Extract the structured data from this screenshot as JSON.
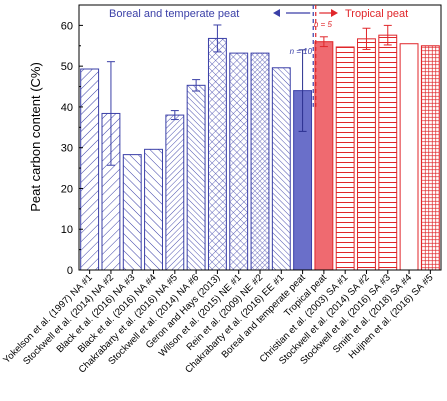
{
  "chart_data": {
    "type": "bar",
    "ylabel": "Peat carbon content (C%)",
    "ylim": [
      0,
      65
    ],
    "yticks": [
      0,
      10,
      20,
      30,
      40,
      50,
      60
    ],
    "categories": [
      "Yokelson et al. (1997) NA #1",
      "Stockwell et al. (2014) NA #2",
      "Black et al. (2016) NA #3",
      "Black et al. (2016) NA #4",
      "Chakrabarty et al. (2016) NA #5",
      "Stockwell et al. (2014) NA #6",
      "Geron and Hays (2013)",
      "Wilson et al. (2015) NE #1",
      "Rein et al. (2009) NE #2",
      "Chakrabarty et al. (2016) EE #1",
      "Boreal and temperate peat",
      "Tropical peat",
      "Christian et al. (2003) SA #1",
      "Stockwell et al. (2014) SA #2",
      "Stockwell et al. (2016) SA #3",
      "Smith et al. (2018) SA #4",
      "Huijnen et al. (2016) SA #5"
    ],
    "values": [
      49.3,
      38.4,
      28.3,
      29.6,
      38,
      45.3,
      56.8,
      53.2,
      53.2,
      49.6,
      44,
      56,
      54.7,
      56.7,
      57.6,
      55.5,
      55
    ],
    "errors": [
      null,
      12.7,
      null,
      null,
      1.1,
      1.4,
      3.3,
      null,
      null,
      null,
      10,
      1.2,
      null,
      2.6,
      2.4,
      null,
      null
    ],
    "summary_labels": {
      "boreal": "n = 10",
      "tropical": "n = 5"
    },
    "regions": [
      {
        "name": "Boreal and temperate peat",
        "color": "#3a3fa7"
      },
      {
        "name": "Tropical peat",
        "color": "#e0262a"
      }
    ],
    "colors": {
      "boreal": "#3a3fa7",
      "tropical": "#e0262a",
      "boreal_fill": "#6a6fc9",
      "tropical_fill": "#ef6a70"
    }
  }
}
